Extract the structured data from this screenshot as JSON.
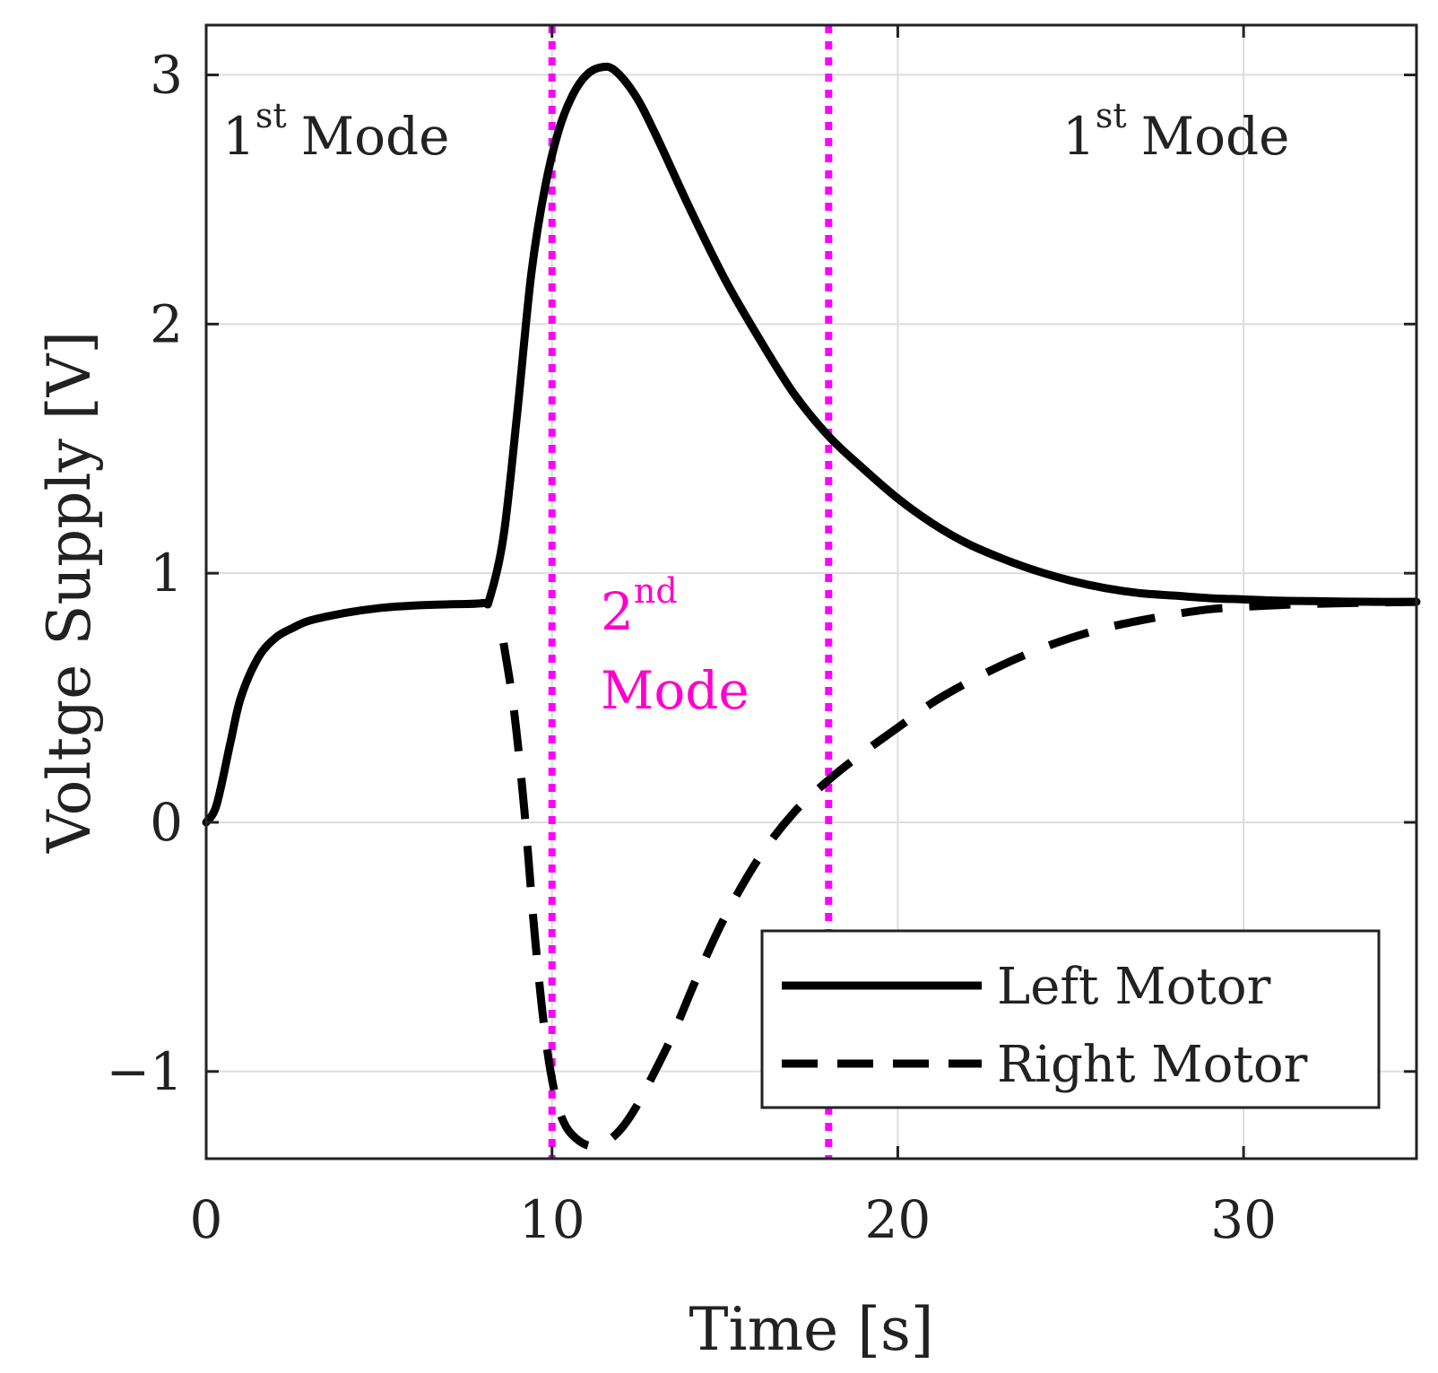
{
  "chart_data": {
    "type": "line",
    "title": "",
    "xlabel": "Time [s]",
    "ylabel": "Voltge Supply [V]",
    "xlim": [
      0,
      35
    ],
    "ylim": [
      -1.35,
      3.2
    ],
    "xticks": [
      0,
      10,
      20,
      30
    ],
    "yticks": [
      -1,
      0,
      1,
      2,
      3
    ],
    "xtick_labels": [
      "0",
      "10",
      "20",
      "30"
    ],
    "ytick_labels": [
      "−1",
      "0",
      "1",
      "2",
      "3"
    ],
    "grid": true,
    "legend": {
      "location": "bottom-right",
      "entries": [
        "Left Motor",
        "Right Motor"
      ]
    },
    "series": [
      {
        "name": "Left Motor",
        "style": "solid",
        "color": "#000000",
        "x": [
          0,
          0.3,
          0.7,
          1.0,
          1.5,
          2.0,
          2.5,
          3.0,
          4.0,
          5.0,
          6.0,
          7.0,
          8.0,
          8.2,
          8.6,
          9.0,
          9.4,
          9.8,
          10.2,
          10.6,
          11.0,
          11.4,
          11.8,
          12.4,
          13.0,
          14.0,
          15.0,
          16.0,
          17.0,
          18.0,
          19.0,
          20.0,
          21.0,
          22.0,
          23.0,
          24.0,
          25.0,
          26.0,
          27.0,
          28.0,
          29.0,
          30.0,
          31.0,
          32.0,
          33.0,
          34.0,
          35.0
        ],
        "values": [
          0,
          0.07,
          0.32,
          0.5,
          0.66,
          0.74,
          0.78,
          0.81,
          0.84,
          0.86,
          0.87,
          0.875,
          0.88,
          0.9,
          1.15,
          1.65,
          2.2,
          2.55,
          2.78,
          2.92,
          3.0,
          3.03,
          3.02,
          2.92,
          2.76,
          2.46,
          2.18,
          1.94,
          1.72,
          1.55,
          1.42,
          1.3,
          1.2,
          1.12,
          1.06,
          1.01,
          0.97,
          0.94,
          0.92,
          0.91,
          0.9,
          0.895,
          0.89,
          0.888,
          0.886,
          0.885,
          0.885
        ]
      },
      {
        "name": "Right Motor",
        "style": "dashed",
        "color": "#000000",
        "x": [
          8.6,
          8.9,
          9.2,
          9.5,
          9.8,
          10.1,
          10.4,
          10.8,
          11.2,
          11.6,
          12.0,
          12.4,
          12.9,
          13.5,
          14.2,
          15.0,
          16.0,
          17.0,
          18.0,
          19.0,
          20.0,
          21.0,
          22.0,
          23.0,
          24.0,
          25.0,
          26.0,
          27.0,
          28.0,
          29.0,
          30.0,
          31.0,
          32.0,
          33.0,
          34.0,
          35.0
        ],
        "values": [
          0.72,
          0.45,
          0.05,
          -0.45,
          -0.85,
          -1.1,
          -1.22,
          -1.28,
          -1.3,
          -1.28,
          -1.23,
          -1.15,
          -1.02,
          -0.85,
          -0.62,
          -0.38,
          -0.14,
          0.04,
          0.17,
          0.28,
          0.38,
          0.48,
          0.56,
          0.63,
          0.69,
          0.74,
          0.78,
          0.81,
          0.835,
          0.855,
          0.865,
          0.872,
          0.877,
          0.88,
          0.883,
          0.885
        ]
      }
    ],
    "vlines": [
      {
        "x": 10,
        "color": "#ff00ff",
        "style": "dotted"
      },
      {
        "x": 18,
        "color": "#ff00ff",
        "style": "dotted"
      }
    ],
    "annotations": [
      {
        "base": "1",
        "sup": "st",
        "text": "Mode",
        "color": "#222222"
      },
      {
        "base": "1",
        "sup": "st",
        "text": "Mode",
        "color": "#222222"
      },
      {
        "base": "2",
        "sup": "nd",
        "text": "Mode",
        "color": "#ff00cc"
      }
    ]
  }
}
